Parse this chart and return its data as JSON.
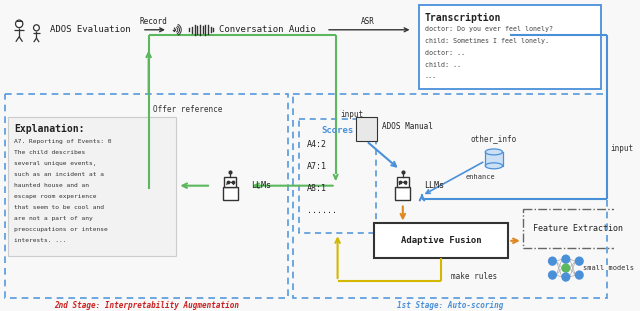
{
  "bg_color": "#f8f8f8",
  "green": "#5cb85c",
  "blue": "#4a90d9",
  "yellow": "#d4b800",
  "orange": "#e08820",
  "dark": "#333333",
  "stage2_label": "2nd Stage: Interpretability Augmentation",
  "stage1_label": "1st Stage: Auto-scoring",
  "transcription_title": "Transcription",
  "transcription_lines": [
    "doctor: Do you ever feel lonely?",
    "child: Sometimes I feel lonely.",
    "doctor: ..",
    "child: ..",
    "..."
  ],
  "explanation_title": "Explanation:",
  "explanation_lines": [
    "A7. Reporting of Events: 0",
    "The child describes",
    "several unique events,",
    "such as an incident at a",
    "haunted house and an",
    "escape room experience",
    "that seem to be cool and",
    "are not a part of any",
    "preoccupations or intense",
    "interests. ..."
  ],
  "scores_title": "Scores",
  "scores_lines": [
    "A4:2",
    "A7:1",
    "A8:1",
    "......"
  ],
  "adaptive_label": "Adaptive Fusion",
  "feature_label": "Feature Extraction",
  "ados_manual_label": "ADOS Manual",
  "other_info_label": "other_info",
  "enhance_label": "enhance",
  "offer_ref_label": "Offer reference",
  "input_label": "input",
  "record_label": "Record",
  "asr_label": "ASR",
  "ados_eval_label": "ADOS Evaluation",
  "conv_audio_label": "Conversation Audio",
  "llms_label": "LLMs",
  "make_rules_label": "make rules",
  "small_models_label": "small models"
}
